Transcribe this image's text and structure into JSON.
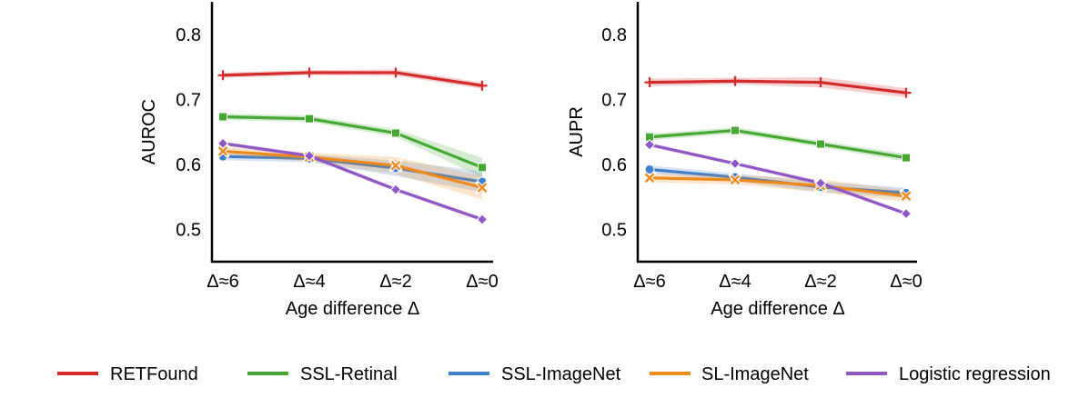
{
  "chart_data": [
    {
      "type": "line",
      "title": "",
      "xlabel": "Age difference Δ",
      "ylabel": "AUROC",
      "categories": [
        "Δ≈6",
        "Δ≈4",
        "Δ≈2",
        "Δ≈0"
      ],
      "ylim": [
        0.45,
        0.85
      ],
      "yticks": [
        "0.5",
        "0.6",
        "0.7",
        "0.8"
      ],
      "grid": false,
      "series": [
        {
          "name": "RETFound",
          "values": [
            0.737,
            0.741,
            0.741,
            0.721
          ],
          "ci": [
            0.004,
            0.004,
            0.005,
            0.005
          ]
        },
        {
          "name": "SSL-Retinal",
          "values": [
            0.673,
            0.67,
            0.648,
            0.595
          ],
          "ci": [
            0.005,
            0.005,
            0.006,
            0.015
          ]
        },
        {
          "name": "SSL-ImageNet",
          "values": [
            0.612,
            0.609,
            0.594,
            0.573
          ],
          "ci": [
            0.006,
            0.006,
            0.012,
            0.016
          ]
        },
        {
          "name": "SL-ImageNet",
          "values": [
            0.62,
            0.611,
            0.598,
            0.564
          ],
          "ci": [
            0.006,
            0.007,
            0.013,
            0.018
          ]
        },
        {
          "name": "Logistic regression",
          "values": [
            0.632,
            0.613,
            0.561,
            0.515
          ],
          "ci": [
            0.003,
            0.003,
            0.003,
            0.003
          ]
        }
      ]
    },
    {
      "type": "line",
      "title": "",
      "xlabel": "Age difference Δ",
      "ylabel": "AUPR",
      "categories": [
        "Δ≈6",
        "Δ≈4",
        "Δ≈2",
        "Δ≈0"
      ],
      "ylim": [
        0.45,
        0.85
      ],
      "yticks": [
        "0.5",
        "0.6",
        "0.7",
        "0.8"
      ],
      "grid": false,
      "series": [
        {
          "name": "RETFound",
          "values": [
            0.726,
            0.728,
            0.726,
            0.71
          ],
          "ci": [
            0.006,
            0.005,
            0.008,
            0.007
          ]
        },
        {
          "name": "SSL-Retinal",
          "values": [
            0.642,
            0.652,
            0.631,
            0.61
          ],
          "ci": [
            0.005,
            0.005,
            0.005,
            0.006
          ]
        },
        {
          "name": "SSL-ImageNet",
          "values": [
            0.592,
            0.58,
            0.565,
            0.556
          ],
          "ci": [
            0.006,
            0.006,
            0.008,
            0.008
          ]
        },
        {
          "name": "SL-ImageNet",
          "values": [
            0.579,
            0.576,
            0.567,
            0.551
          ],
          "ci": [
            0.007,
            0.007,
            0.01,
            0.009
          ]
        },
        {
          "name": "Logistic regression",
          "values": [
            0.63,
            0.601,
            0.571,
            0.524
          ],
          "ci": [
            0.003,
            0.003,
            0.003,
            0.003
          ]
        }
      ]
    }
  ],
  "legend": {
    "position": "bottom",
    "items": [
      {
        "label": "RETFound",
        "color": "#d42a2a",
        "marker": "plus"
      },
      {
        "label": "SSL-Retinal",
        "color": "#44a833",
        "marker": "square"
      },
      {
        "label": "SSL-ImageNet",
        "color": "#3f80cc",
        "marker": "circle"
      },
      {
        "label": "SL-ImageNet",
        "color": "#ee8a1c",
        "marker": "x"
      },
      {
        "label": "Logistic regression",
        "color": "#9058c4",
        "marker": "diamond"
      }
    ]
  }
}
